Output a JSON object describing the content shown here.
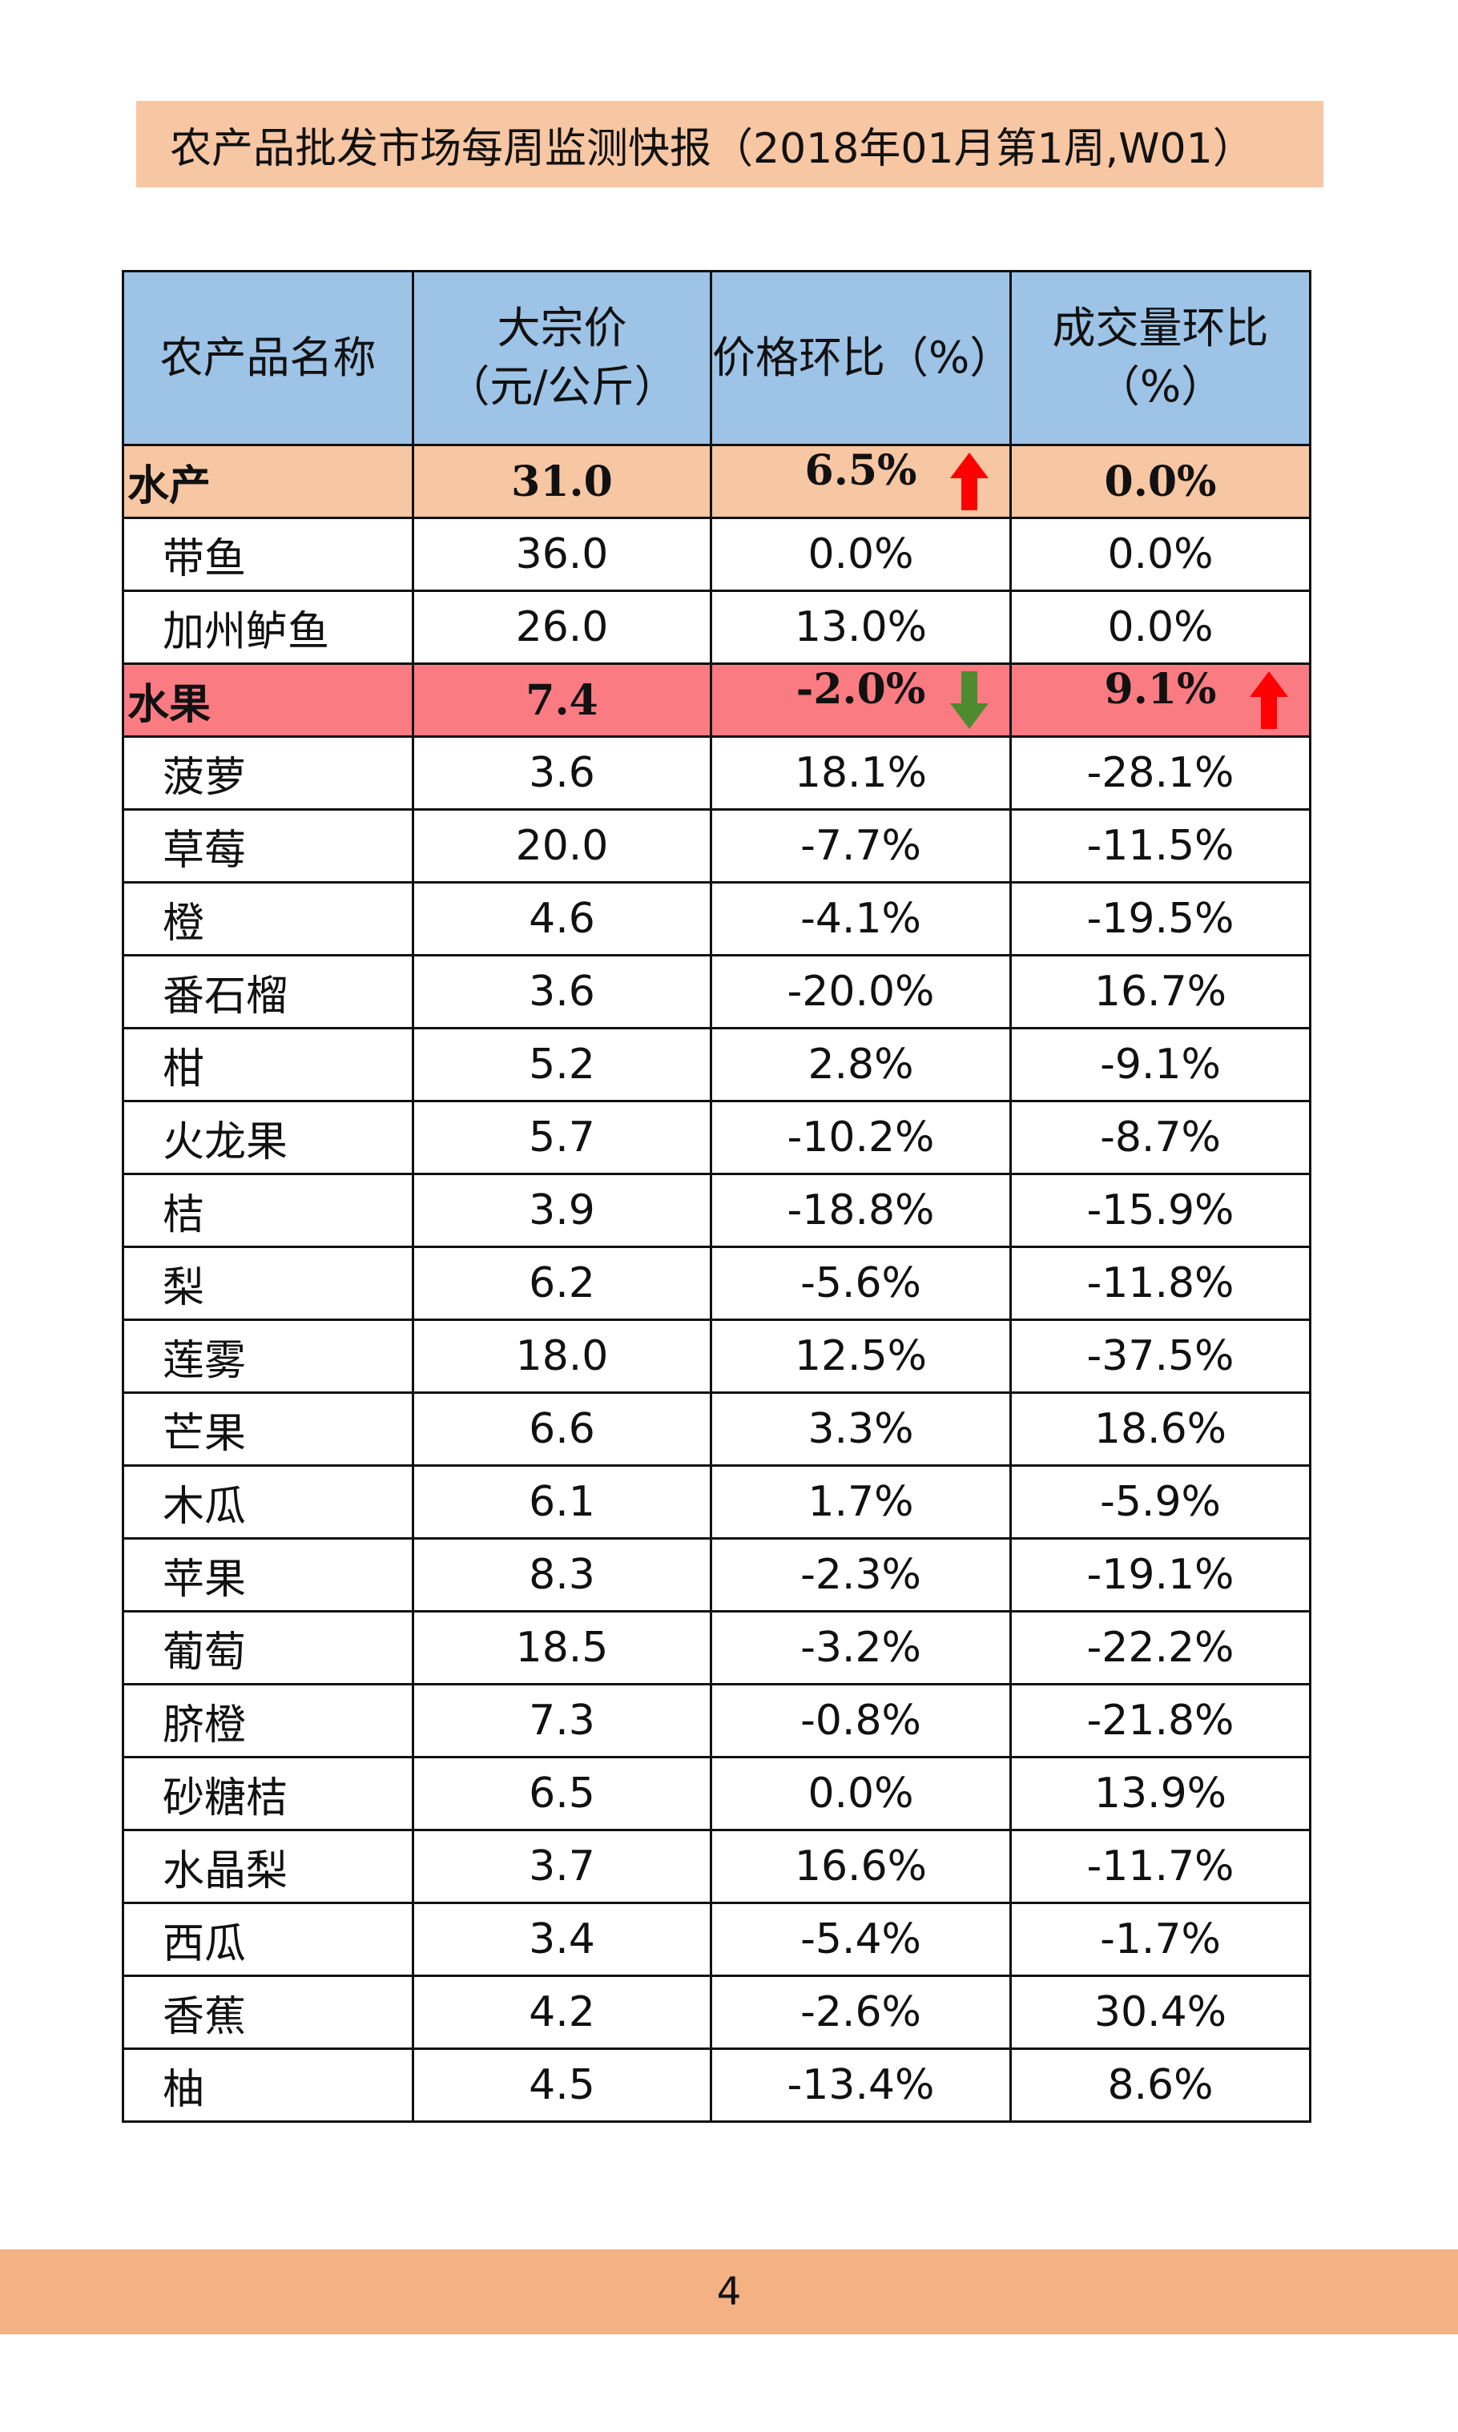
{
  "report": {
    "title": "农产品批发市场每周监测快报（2018年01月第1周,W01）",
    "page_number": "4"
  },
  "colors": {
    "title_bg": "#f7c6a3",
    "header_bg": "#9dc3e6",
    "aquatic_bg": "#f7c6a3",
    "fruit_bg": "#fa7b82",
    "footer_bg": "#f4b183",
    "arrow_up": "#ff0000",
    "arrow_down": "#4e8a2e"
  },
  "table": {
    "headers": {
      "name": "农产品名称",
      "price_line1": "大宗价",
      "price_line2": "（元/公斤）",
      "price_change": "价格环比（%）",
      "volume_line1": "成交量环比",
      "volume_line2": "（%）"
    },
    "aquatic": {
      "name": "水产",
      "price": "31.0",
      "price_change": "6.5%",
      "price_change_icon": "up-arrow",
      "volume_change": "0.0%",
      "items": [
        {
          "name": "带鱼",
          "price": "36.0",
          "price_change": "0.0%",
          "volume_change": "0.0%"
        },
        {
          "name": "加州鲈鱼",
          "price": "26.0",
          "price_change": "13.0%",
          "volume_change": "0.0%"
        }
      ]
    },
    "fruit": {
      "name": "水果",
      "price": "7.4",
      "price_change": "-2.0%",
      "price_change_icon": "down-arrow",
      "volume_change": "9.1%",
      "volume_change_icon": "up-arrow",
      "items": [
        {
          "name": "菠萝",
          "price": "3.6",
          "price_change": "18.1%",
          "volume_change": "-28.1%"
        },
        {
          "name": "草莓",
          "price": "20.0",
          "price_change": "-7.7%",
          "volume_change": "-11.5%"
        },
        {
          "name": "橙",
          "price": "4.6",
          "price_change": "-4.1%",
          "volume_change": "-19.5%"
        },
        {
          "name": "番石榴",
          "price": "3.6",
          "price_change": "-20.0%",
          "volume_change": "16.7%"
        },
        {
          "name": "柑",
          "price": "5.2",
          "price_change": "2.8%",
          "volume_change": "-9.1%"
        },
        {
          "name": "火龙果",
          "price": "5.7",
          "price_change": "-10.2%",
          "volume_change": "-8.7%"
        },
        {
          "name": "桔",
          "price": "3.9",
          "price_change": "-18.8%",
          "volume_change": "-15.9%"
        },
        {
          "name": "梨",
          "price": "6.2",
          "price_change": "-5.6%",
          "volume_change": "-11.8%"
        },
        {
          "name": "莲雾",
          "price": "18.0",
          "price_change": "12.5%",
          "volume_change": "-37.5%"
        },
        {
          "name": "芒果",
          "price": "6.6",
          "price_change": "3.3%",
          "volume_change": "18.6%"
        },
        {
          "name": "木瓜",
          "price": "6.1",
          "price_change": "1.7%",
          "volume_change": "-5.9%"
        },
        {
          "name": "苹果",
          "price": "8.3",
          "price_change": "-2.3%",
          "volume_change": "-19.1%"
        },
        {
          "name": "葡萄",
          "price": "18.5",
          "price_change": "-3.2%",
          "volume_change": "-22.2%"
        },
        {
          "name": "脐橙",
          "price": "7.3",
          "price_change": "-0.8%",
          "volume_change": "-21.8%"
        },
        {
          "name": "砂糖桔",
          "price": "6.5",
          "price_change": "0.0%",
          "volume_change": "13.9%"
        },
        {
          "name": "水晶梨",
          "price": "3.7",
          "price_change": "16.6%",
          "volume_change": "-11.7%"
        },
        {
          "name": "西瓜",
          "price": "3.4",
          "price_change": "-5.4%",
          "volume_change": "-1.7%"
        },
        {
          "name": "香蕉",
          "price": "4.2",
          "price_change": "-2.6%",
          "volume_change": "30.4%"
        },
        {
          "name": "柚",
          "price": "4.5",
          "price_change": "-13.4%",
          "volume_change": "8.6%"
        }
      ]
    }
  }
}
